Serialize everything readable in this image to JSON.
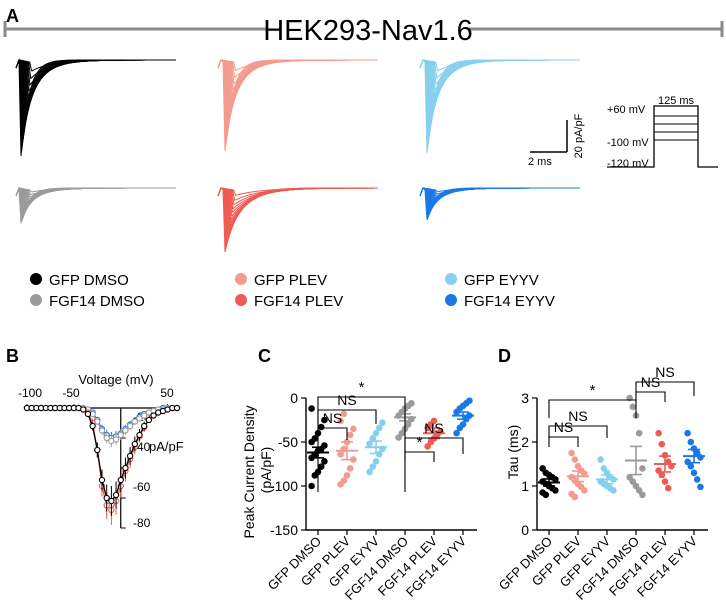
{
  "figure": {
    "title": "HEK293-Nav1.6",
    "panel_labels": [
      "A",
      "B",
      "C",
      "D"
    ]
  },
  "colors": {
    "GFP DMSO": "#000000",
    "FGF14 DMSO": "#9b9b9b",
    "GFP PLEV": "#f39b8f",
    "FGF14 PLEV": "#ee5b52",
    "GFP EYYV": "#86d0ee",
    "FGF14 EYYV": "#1a78e6"
  },
  "legend": {
    "entries": [
      "GFP DMSO",
      "FGF14 DMSO",
      "GFP PLEV",
      "FGF14 PLEV",
      "GFP EYYV",
      "FGF14 EYYV"
    ]
  },
  "scale_bar": {
    "time_label": "2 ms",
    "current_label": "20 pA/pF"
  },
  "protocol": {
    "duration_label": "125 ms",
    "levels": [
      "+60 mV",
      "-100 mV",
      "-120 mV"
    ]
  },
  "chart_data": [
    {
      "id": "A",
      "type": "line",
      "title": "HEK293-Nav1.6",
      "description": "families of sodium current traces",
      "series_order": [
        "GFP DMSO",
        "GFP PLEV",
        "GFP EYYV",
        "FGF14 DMSO",
        "FGF14 PLEV",
        "FGF14 EYYV"
      ],
      "peak_amplitude_pA_pF": [
        -60,
        -57,
        -58,
        -22,
        -40,
        -20
      ]
    },
    {
      "id": "B",
      "type": "line",
      "xlabel": "Voltage (mV)",
      "ylabel": "pA/pF",
      "xlim": [
        -100,
        60
      ],
      "ylim": [
        -80,
        0
      ],
      "xticks": [
        "-100",
        "-50",
        "50"
      ],
      "yticks": [
        "-20",
        "-40",
        "-60",
        "-80"
      ],
      "x": [
        -100,
        -95,
        -90,
        -85,
        -80,
        -75,
        -70,
        -65,
        -60,
        -55,
        -50,
        -45,
        -40,
        -35,
        -30,
        -25,
        -20,
        -15,
        -10,
        -5,
        0,
        5,
        10,
        15,
        20,
        25,
        30,
        35,
        40,
        45,
        50,
        55,
        60
      ],
      "series": [
        {
          "name": "GFP DMSO",
          "values": [
            0,
            0,
            0,
            0,
            0,
            0,
            0,
            0,
            0,
            0,
            0,
            0,
            -1,
            -4,
            -12,
            -28,
            -48,
            -60,
            -62,
            -58,
            -48,
            -40,
            -32,
            -24,
            -18,
            -12,
            -8,
            -5,
            -3,
            -2,
            -1,
            0,
            0
          ]
        },
        {
          "name": "FGF14 PLEV",
          "values": [
            0,
            0,
            0,
            0,
            0,
            0,
            0,
            0,
            0,
            0,
            0,
            0,
            -1,
            -3,
            -10,
            -28,
            -52,
            -65,
            -68,
            -62,
            -52,
            -42,
            -34,
            -26,
            -19,
            -13,
            -8,
            -5,
            -3,
            -2,
            -1,
            0,
            0
          ]
        },
        {
          "name": "FGF14 DMSO",
          "values": [
            0,
            0,
            0,
            0,
            0,
            0,
            0,
            0,
            0,
            0,
            0,
            0,
            0,
            -1,
            -4,
            -9,
            -15,
            -20,
            -22,
            -21,
            -18,
            -15,
            -12,
            -9,
            -7,
            -5,
            -3,
            -2,
            -1,
            -1,
            0,
            0,
            0
          ]
        },
        {
          "name": "FGF14 EYYV",
          "values": [
            0,
            0,
            0,
            0,
            0,
            0,
            0,
            0,
            0,
            0,
            0,
            0,
            0,
            -1,
            -3,
            -8,
            -14,
            -18,
            -20,
            -19,
            -17,
            -14,
            -11,
            -9,
            -6,
            -4,
            -3,
            -2,
            -1,
            0,
            0,
            0,
            0
          ]
        }
      ],
      "error": [
        0,
        0,
        0,
        0,
        0,
        0,
        0,
        0,
        0,
        0,
        0,
        0,
        1,
        2,
        3,
        5,
        7,
        9,
        10,
        9,
        8,
        7,
        6,
        5,
        4,
        3,
        2,
        2,
        1,
        1,
        1,
        0,
        0
      ]
    },
    {
      "id": "C",
      "type": "scatter",
      "ylabel": "Peak Current Density (pA/pF)",
      "ylim": [
        -150,
        0
      ],
      "yticks": [
        "-150",
        "-100",
        "-50",
        "0"
      ],
      "categories": [
        "GFP DMSO",
        "GFP PLEV",
        "GFP EYYV",
        "FGF14 DMSO",
        "FGF14 PLEV",
        "FGF14 EYYV"
      ],
      "means": [
        -62,
        -60,
        -56,
        -22,
        -40,
        -20
      ],
      "sems": [
        6,
        10,
        7,
        4,
        6,
        4
      ],
      "points": [
        [
          -100,
          -88,
          -84,
          -78,
          -72,
          -68,
          -64,
          -60,
          -58,
          -54,
          -50,
          -46,
          -40,
          -33,
          -25,
          -12
        ],
        [
          -98,
          -94,
          -88,
          -80,
          -70,
          -64,
          -58,
          -50,
          -42,
          -35,
          -26,
          -18
        ],
        [
          -84,
          -78,
          -72,
          -64,
          -58,
          -52,
          -46,
          -40,
          -34,
          -28
        ],
        [
          -45,
          -40,
          -35,
          -30,
          -24,
          -20,
          -16,
          -12,
          -9,
          -6
        ],
        [
          -55,
          -50,
          -46,
          -42,
          -38,
          -34,
          -30,
          -26
        ],
        [
          -40,
          -34,
          -30,
          -24,
          -20,
          -16,
          -12,
          -9,
          -6,
          -3
        ]
      ],
      "comparisons": [
        {
          "from": 0,
          "to": 3,
          "label": "*"
        },
        {
          "from": 0,
          "to": 2,
          "label": "NS"
        },
        {
          "from": 0,
          "to": 1,
          "label": "NS"
        },
        {
          "from": 3,
          "to": 5,
          "label": "NS"
        },
        {
          "from": 3,
          "to": 4,
          "label": "*"
        }
      ]
    },
    {
      "id": "D",
      "type": "scatter",
      "ylabel": "Tau (ms)",
      "ylim": [
        0,
        3
      ],
      "yticks": [
        "0",
        "1",
        "2",
        "3"
      ],
      "categories": [
        "GFP DMSO",
        "GFP PLEV",
        "GFP EYYV",
        "FGF14 DMSO",
        "FGF14 PLEV",
        "FGF14 EYYV"
      ],
      "means": [
        1.08,
        1.22,
        1.15,
        1.58,
        1.5,
        1.68
      ],
      "sems": [
        0.08,
        0.12,
        0.1,
        0.32,
        0.18,
        0.15
      ],
      "points": [
        [
          1.4,
          1.3,
          1.25,
          1.2,
          1.15,
          1.1,
          1.05,
          1.0,
          0.95,
          0.9,
          0.85,
          0.8
        ],
        [
          1.75,
          1.6,
          1.45,
          1.35,
          1.28,
          1.2,
          1.12,
          1.05,
          0.98,
          0.9,
          0.82,
          0.75
        ],
        [
          1.6,
          1.4,
          1.3,
          1.2,
          1.15,
          1.1,
          1.05,
          1.0,
          0.95,
          0.9
        ],
        [
          3.0,
          2.8,
          2.6,
          2.2,
          1.4,
          1.2,
          1.1,
          1.0,
          0.9,
          0.8
        ],
        [
          2.2,
          1.95,
          1.7,
          1.55,
          1.45,
          1.35,
          1.25,
          1.1,
          0.95
        ],
        [
          2.2,
          2.0,
          1.85,
          1.75,
          1.65,
          1.55,
          1.45,
          1.3,
          1.15,
          0.98
        ]
      ],
      "comparisons": [
        {
          "from": 0,
          "to": 3,
          "label": "*"
        },
        {
          "from": 0,
          "to": 2,
          "label": "NS"
        },
        {
          "from": 0,
          "to": 1,
          "label": "NS"
        },
        {
          "from": 3,
          "to": 5,
          "label": "NS"
        },
        {
          "from": 3,
          "to": 4,
          "label": "NS"
        }
      ]
    }
  ]
}
